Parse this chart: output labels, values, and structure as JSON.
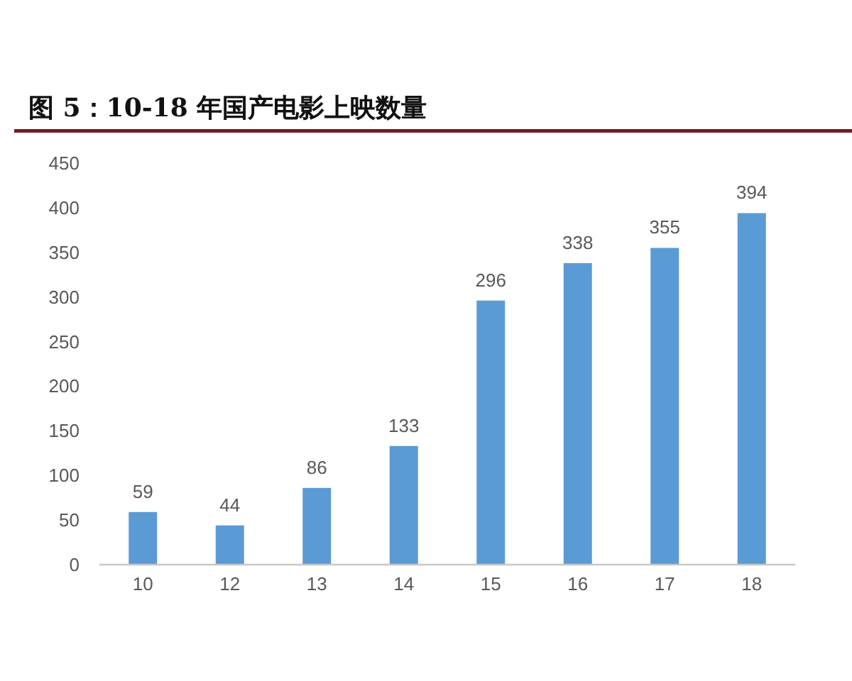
{
  "chart_data": {
    "type": "bar",
    "title": "图 5：10-18 年国产电影上映数量",
    "categories": [
      "10",
      "12",
      "13",
      "14",
      "15",
      "16",
      "17",
      "18"
    ],
    "values": [
      59,
      44,
      86,
      133,
      296,
      338,
      355,
      394
    ],
    "color": "#5b9bd5",
    "ylim": [
      0,
      450
    ],
    "yticks": [
      0,
      50,
      100,
      150,
      200,
      250,
      300,
      350,
      400,
      450
    ],
    "data_labels": true,
    "grid": false
  }
}
